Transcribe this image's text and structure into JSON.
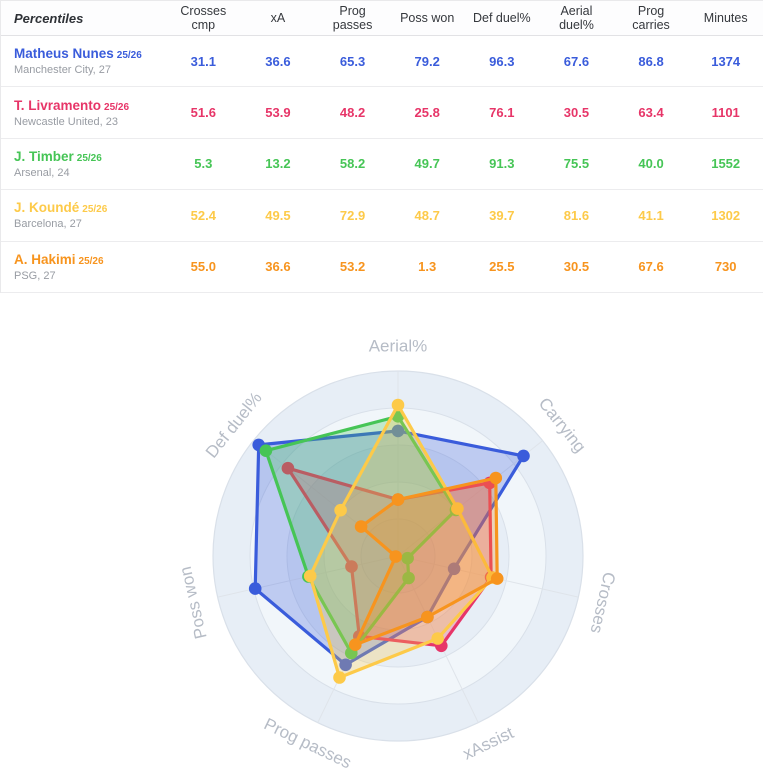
{
  "table": {
    "header_label": "Percentiles",
    "columns": [
      "Crosses cmp",
      "xA",
      "Prog passes",
      "Poss won",
      "Def duel%",
      "Aerial duel%",
      "Prog carries",
      "Minutes"
    ],
    "players": [
      {
        "name": "Matheus Nunes",
        "season": "25/26",
        "meta": "Manchester City, 27",
        "color": "#3a5cdb",
        "values": [
          "31.1",
          "36.6",
          "65.3",
          "79.2",
          "96.3",
          "67.6",
          "86.8",
          "1374"
        ]
      },
      {
        "name": "T. Livramento",
        "season": "25/26",
        "meta": "Newcastle United, 23",
        "color": "#e73568",
        "values": [
          "51.6",
          "53.9",
          "48.2",
          "25.8",
          "76.1",
          "30.5",
          "63.4",
          "1101"
        ]
      },
      {
        "name": "J. Timber",
        "season": "25/26",
        "meta": "Arsenal, 24",
        "color": "#46c556",
        "values": [
          "5.3",
          "13.2",
          "58.2",
          "49.7",
          "91.3",
          "75.5",
          "40.0",
          "1552"
        ]
      },
      {
        "name": "J. Koundé",
        "season": "25/26",
        "meta": "Barcelona, 27",
        "color": "#fdca49",
        "values": [
          "52.4",
          "49.5",
          "72.9",
          "48.7",
          "39.7",
          "81.6",
          "41.1",
          "1302"
        ]
      },
      {
        "name": "A. Hakimi",
        "season": "25/26",
        "meta": "PSG, 27",
        "color": "#f7941e",
        "values": [
          "55.0",
          "36.6",
          "53.2",
          "1.3",
          "25.5",
          "30.5",
          "67.6",
          "730"
        ]
      }
    ]
  },
  "chart_data": {
    "type": "radar",
    "axes": [
      "Aerial%",
      "Carrying",
      "Crosses",
      "xAssist",
      "Prog passes",
      "Poss won",
      "Def duel%"
    ],
    "range": [
      0,
      100
    ],
    "grid_rings": 5,
    "band_colors": [
      "#e7eef6",
      "#f1f6fa",
      "#e7eef6",
      "#f1f6fa",
      "#eaf1f7"
    ],
    "ring_stroke": "#d9e0e9",
    "spoke_stroke": "#dfe4ea",
    "label_color": "#b6bcc6",
    "series": [
      {
        "name": "Matheus Nunes",
        "color": "#3a5cdb",
        "values": [
          67.6,
          86.8,
          31.1,
          36.6,
          65.3,
          79.2,
          96.3
        ]
      },
      {
        "name": "T. Livramento",
        "color": "#e73568",
        "values": [
          30.5,
          63.4,
          51.6,
          53.9,
          48.2,
          25.8,
          76.1
        ]
      },
      {
        "name": "J. Timber",
        "color": "#46c556",
        "values": [
          75.5,
          40.0,
          5.3,
          13.2,
          58.2,
          49.7,
          91.3
        ]
      },
      {
        "name": "J. Koundé",
        "color": "#fdca49",
        "values": [
          81.6,
          41.1,
          52.4,
          49.5,
          72.9,
          48.7,
          39.7
        ]
      },
      {
        "name": "A. Hakimi",
        "color": "#f7941e",
        "values": [
          30.5,
          67.6,
          55.0,
          36.6,
          53.2,
          1.3,
          25.5
        ]
      }
    ]
  }
}
